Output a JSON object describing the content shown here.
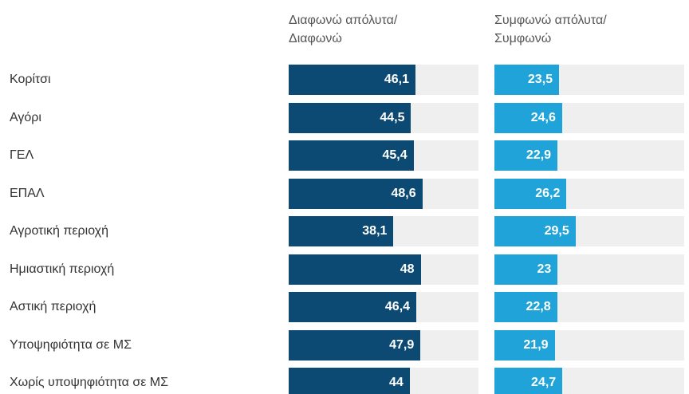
{
  "chart_data": {
    "type": "bar",
    "orientation": "horizontal",
    "categories": [
      "Κορίτσι",
      "Αγόρι",
      "ΓΕΛ",
      "ΕΠΑΛ",
      "Αγροτική περιοχή",
      "Ημιαστική περιοχή",
      "Αστική περιοχή",
      "Υποψηφιότητα σε ΜΣ",
      "Χωρίς υποψηφιότητα σε ΜΣ"
    ],
    "xlim": [
      0,
      69
    ],
    "series": [
      {
        "name": "Διαφωνώ απόλυτα/\nΔιαφωνώ",
        "color": "#0d4a73",
        "values": [
          46.1,
          44.5,
          45.4,
          48.6,
          38.1,
          48,
          46.4,
          47.9,
          44
        ],
        "value_labels": [
          "46,1",
          "44,5",
          "45,4",
          "48,6",
          "38,1",
          "48",
          "46,4",
          "47,9",
          "44"
        ]
      },
      {
        "name": "Συμφωνώ απόλυτα/\nΣυμφωνώ",
        "color": "#1fa3d8",
        "values": [
          23.5,
          24.6,
          22.9,
          26.2,
          29.5,
          23,
          22.8,
          21.9,
          24.7
        ],
        "value_labels": [
          "23,5",
          "24,6",
          "22,9",
          "26,2",
          "29,5",
          "23",
          "22,8",
          "21,9",
          "24,7"
        ]
      }
    ]
  }
}
